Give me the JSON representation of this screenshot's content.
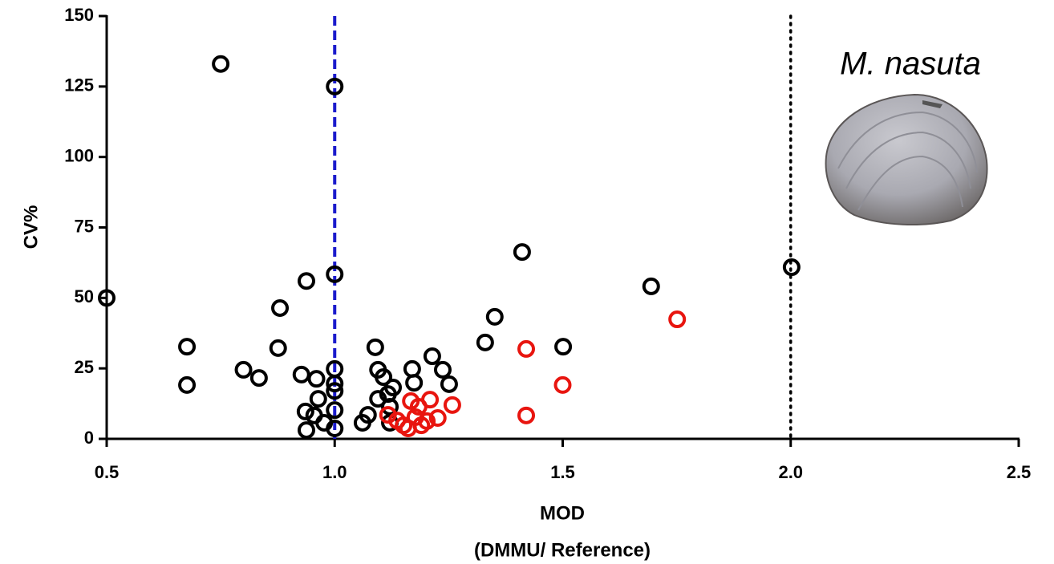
{
  "chart_data": {
    "type": "scatter",
    "xlabel": [
      "MOD",
      "(DMMU/ Reference)"
    ],
    "ylabel": "CV%",
    "annotation": "M. nasuta",
    "xlim": [
      0.5,
      2.5
    ],
    "xticks": [
      0.5,
      {
        "value": 1.0,
        "label": "1.0"
      },
      1.5,
      {
        "value": 2.0,
        "label": "2.0"
      },
      2.5
    ],
    "ylim": [
      0,
      150
    ],
    "yticks": [
      0,
      25,
      50,
      75,
      100,
      125,
      150
    ],
    "vlines": [
      {
        "x": 1.0,
        "color": "#1a1acc",
        "style": "dashed"
      },
      {
        "x": 2.0,
        "color": "#000000",
        "style": "dotted"
      }
    ],
    "series": [
      {
        "color": "#000000",
        "x": [
          0.5,
          0.75,
          1.0,
          1.0,
          0.938,
          0.88,
          0.876,
          0.676,
          0.676,
          0.8,
          0.834,
          0.927,
          0.96,
          1.0,
          1.0,
          1.0,
          0.964,
          0.936,
          0.955,
          0.977,
          1.0,
          1.0,
          0.938,
          1.061,
          1.073,
          1.089,
          1.095,
          1.107,
          1.128,
          1.117,
          1.095,
          1.121,
          1.121,
          1.17,
          1.174,
          1.214,
          1.237,
          1.251,
          1.33,
          1.351,
          1.411,
          1.501,
          1.694,
          2.002
        ],
        "values": [
          50,
          133,
          125,
          58.4,
          56,
          46.4,
          32.2,
          32.7,
          19.1,
          24.5,
          21.6,
          22.8,
          21.3,
          24.8,
          19.6,
          17,
          14.2,
          9.7,
          8.3,
          5.7,
          10.2,
          3.7,
          3.1,
          5.7,
          8.5,
          32.5,
          24.5,
          21.9,
          18.2,
          15.9,
          14.2,
          11.4,
          5.7,
          24.8,
          19.9,
          29.3,
          24.5,
          19.4,
          34.2,
          43.3,
          66.3,
          32.7,
          54.1,
          60.9
        ]
      },
      {
        "color": "#e8150f",
        "x": [
          1.42,
          1.42,
          1.5,
          1.751,
          1.258,
          1.167,
          1.209,
          1.184,
          1.117,
          1.226,
          1.202,
          1.177,
          1.151,
          1.19,
          1.161,
          1.137
        ],
        "values": [
          31.9,
          8.3,
          19.1,
          42.4,
          12,
          13.4,
          13.9,
          11.4,
          8.5,
          7.4,
          6.3,
          7.7,
          4.8,
          4.8,
          3.7,
          6.5
        ]
      }
    ]
  }
}
